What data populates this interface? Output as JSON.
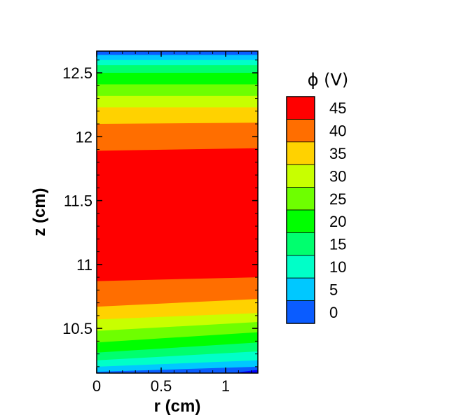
{
  "chart_data": {
    "type": "heatmap",
    "subtype": "filled-contour",
    "title": "",
    "xlabel": "r (cm)",
    "ylabel": "z (cm)",
    "xlim": [
      0,
      1.25
    ],
    "ylim": [
      10.15,
      12.67
    ],
    "x_ticks": [
      "0",
      "0.5",
      "1"
    ],
    "y_ticks": [
      "10.5",
      "11",
      "11.5",
      "12",
      "12.5"
    ],
    "grid": false,
    "legend": {
      "title": "ϕ (V)",
      "placement": "right",
      "levels": [
        "0",
        "5",
        "10",
        "15",
        "20",
        "25",
        "30",
        "35",
        "40",
        "45"
      ],
      "colors": [
        "#0000ff",
        "#0a5cff",
        "#00c8ff",
        "#00ffc8",
        "#00ff6e",
        "#00ff00",
        "#6eff00",
        "#c8ff00",
        "#ffd200",
        "#ff6e00",
        "#ff0000"
      ]
    },
    "contour_lines": [
      {
        "level": 45,
        "z_at_r0": 11.89,
        "z_at_r1": 11.91
      },
      {
        "level": 40,
        "z_at_r0": 12.1,
        "z_at_r1": 12.11
      },
      {
        "level": 35,
        "z_at_r0": 12.23,
        "z_at_r1": 12.23
      },
      {
        "level": 30,
        "z_at_r0": 12.32,
        "z_at_r1": 12.32
      },
      {
        "level": 25,
        "z_at_r0": 12.41,
        "z_at_r1": 12.41
      },
      {
        "level": 20,
        "z_at_r0": 12.5,
        "z_at_r1": 12.5
      },
      {
        "level": 15,
        "z_at_r0": 12.56,
        "z_at_r1": 12.56
      },
      {
        "level": 10,
        "z_at_r0": 12.6,
        "z_at_r1": 12.6
      },
      {
        "level": 5,
        "z_at_r0": 12.64,
        "z_at_r1": 12.64
      }
    ],
    "contour_lines_bottom": [
      {
        "level": 45,
        "z_at_r0": 10.87,
        "z_at_r1": 10.9
      },
      {
        "level": 40,
        "z_at_r0": 10.67,
        "z_at_r1": 10.73
      },
      {
        "level": 35,
        "z_at_r0": 10.57,
        "z_at_r1": 10.62
      },
      {
        "level": 30,
        "z_at_r0": 10.48,
        "z_at_r1": 10.55
      },
      {
        "level": 25,
        "z_at_r0": 10.39,
        "z_at_r1": 10.47
      },
      {
        "level": 20,
        "z_at_r0": 10.31,
        "z_at_r1": 10.39
      },
      {
        "level": 15,
        "z_at_r0": 10.25,
        "z_at_r1": 10.32
      },
      {
        "level": 10,
        "z_at_r0": 10.2,
        "z_at_r1": 10.25
      },
      {
        "level": 5,
        "z_at_r0": 10.16,
        "z_at_r1": 10.2
      }
    ]
  }
}
